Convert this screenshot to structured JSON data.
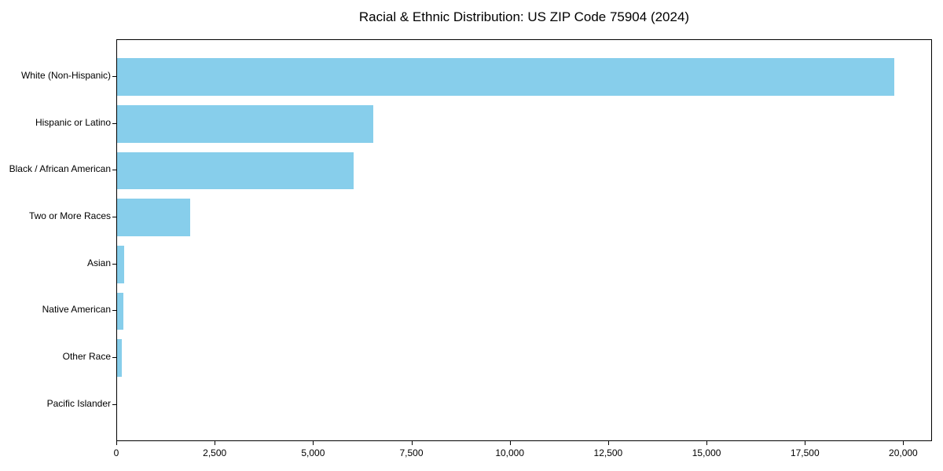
{
  "chart_data": {
    "type": "bar",
    "orientation": "horizontal",
    "title": "Racial & Ethnic Distribution: US ZIP Code 75904 (2024)",
    "xlabel": "",
    "ylabel": "",
    "categories": [
      "White (Non-Hispanic)",
      "Hispanic or Latino",
      "Black / African American",
      "Two or More Races",
      "Asian",
      "Native American",
      "Other Race",
      "Pacific Islander"
    ],
    "values": [
      19750,
      6510,
      6010,
      1850,
      170,
      150,
      115,
      0
    ],
    "xlim": [
      0,
      20730
    ],
    "xticks": {
      "values": [
        0,
        2500,
        5000,
        7500,
        10000,
        12500,
        15000,
        17500,
        20000
      ],
      "labels": [
        "0",
        "2,500",
        "5,000",
        "7,500",
        "10,000",
        "12,500",
        "15,000",
        "17,500",
        "20,000"
      ]
    },
    "bar_color": "#87CEEB",
    "axis_color": "#000000",
    "grid": false,
    "legend_position": "none"
  }
}
